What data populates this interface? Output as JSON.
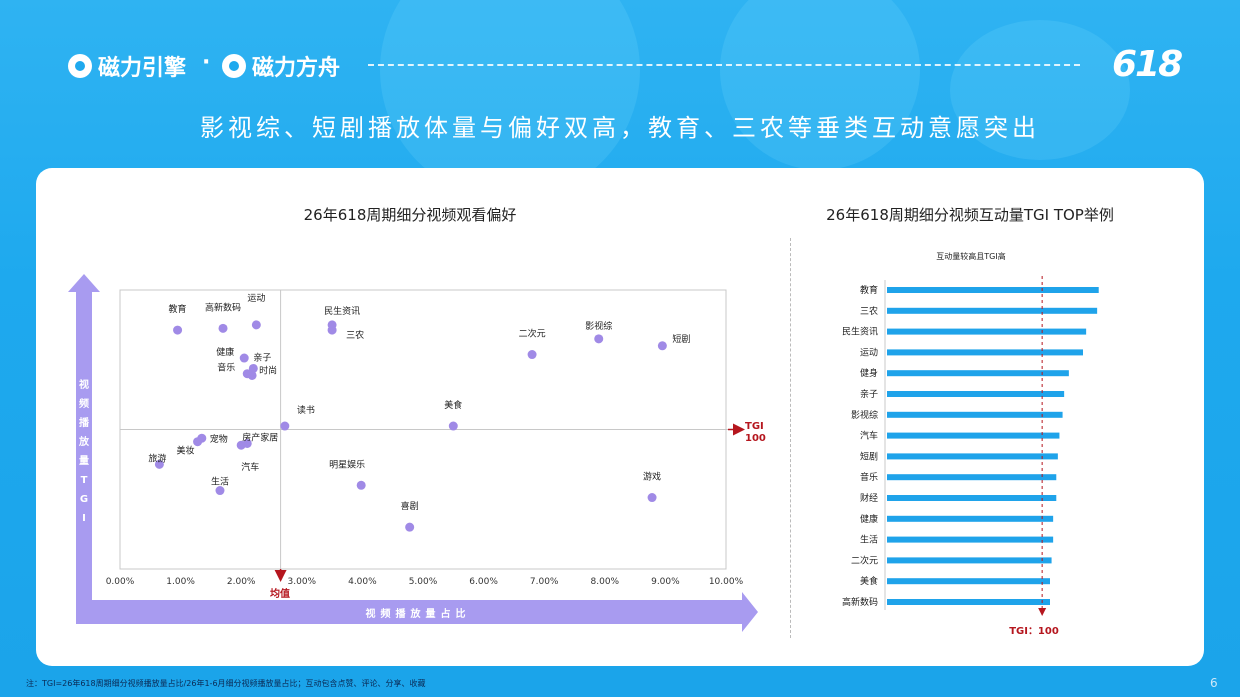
{
  "header": {
    "logo1": "磁力引擎",
    "separator": "·",
    "logo2": "磁力方舟",
    "badge": "618",
    "headline": "影视综、短剧播放体量与偏好双高，教育、三农等垂类互动意愿突出"
  },
  "left_title": "26年618周期细分视频观看偏好",
  "right_title": "26年618周期细分视频互动量TGI TOP举例",
  "footnote": "注：TGI=26年618周期细分视频播放量占比/26年1-6月细分视频播放量占比；互动包含点赞、评论、分享、收藏",
  "page_number": "6",
  "colors": {
    "point": "#a08ae6",
    "bar": "#1fa3ea",
    "arrow_red": "#b5161e",
    "axis_arrow": "#a89bf0"
  },
  "chart_data": [
    {
      "type": "scatter",
      "title": "26年618周期细分视频观看偏好",
      "xlabel": "视频播放量占比",
      "ylabel": "视频播放量TGI",
      "x_ticks": [
        "0.00%",
        "1.00%",
        "2.00%",
        "3.00%",
        "4.00%",
        "5.00%",
        "6.00%",
        "7.00%",
        "8.00%",
        "9.00%",
        "10.00%"
      ],
      "xlim": [
        0,
        10
      ],
      "ylim": [
        20,
        180
      ],
      "mean_x": 2.65,
      "mean_label": "均值",
      "tgi_line": 100,
      "tgi_label": "TGI 100",
      "points": [
        {
          "name": "教育",
          "x": 0.95,
          "y": 157
        },
        {
          "name": "高新数码",
          "x": 1.7,
          "y": 158
        },
        {
          "name": "运动",
          "x": 2.25,
          "y": 160
        },
        {
          "name": "民生资讯",
          "x": 3.5,
          "y": 160
        },
        {
          "name": "三农",
          "x": 3.5,
          "y": 157
        },
        {
          "name": "影视综",
          "x": 7.9,
          "y": 152
        },
        {
          "name": "二次元",
          "x": 6.8,
          "y": 143
        },
        {
          "name": "短剧",
          "x": 8.95,
          "y": 148
        },
        {
          "name": "健康",
          "x": 2.05,
          "y": 141
        },
        {
          "name": "亲子",
          "x": 2.2,
          "y": 135
        },
        {
          "name": "音乐",
          "x": 2.1,
          "y": 132
        },
        {
          "name": "时尚",
          "x": 2.18,
          "y": 131
        },
        {
          "name": "读书",
          "x": 2.72,
          "y": 102
        },
        {
          "name": "美食",
          "x": 5.5,
          "y": 102
        },
        {
          "name": "宠物",
          "x": 1.35,
          "y": 95
        },
        {
          "name": "美妆",
          "x": 1.28,
          "y": 93
        },
        {
          "name": "房产家居",
          "x": 2.1,
          "y": 92
        },
        {
          "name": "汽车",
          "x": 2.0,
          "y": 91
        },
        {
          "name": "旅游",
          "x": 0.65,
          "y": 80
        },
        {
          "name": "生活",
          "x": 1.65,
          "y": 65
        },
        {
          "name": "明星娱乐",
          "x": 3.98,
          "y": 68
        },
        {
          "name": "游戏",
          "x": 8.78,
          "y": 61
        },
        {
          "name": "喜剧",
          "x": 4.78,
          "y": 44
        }
      ]
    },
    {
      "type": "bar",
      "title": "26年618周期细分视频互动量TGI TOP举例",
      "subtitle": "互动量较高且TGI高",
      "categories": [
        "教育",
        "三农",
        "民生资讯",
        "运动",
        "健身",
        "亲子",
        "影视综",
        "汽车",
        "短剧",
        "音乐",
        "财经",
        "健康",
        "生活",
        "二次元",
        "美食",
        "高新数码"
      ],
      "values": [
        136,
        135,
        128,
        126,
        117,
        114,
        113,
        111,
        110,
        109,
        109,
        107,
        107,
        106,
        105,
        105
      ],
      "xlim": [
        0,
        140
      ],
      "tgi_line": 100,
      "tgi_label": "TGI：100"
    }
  ]
}
